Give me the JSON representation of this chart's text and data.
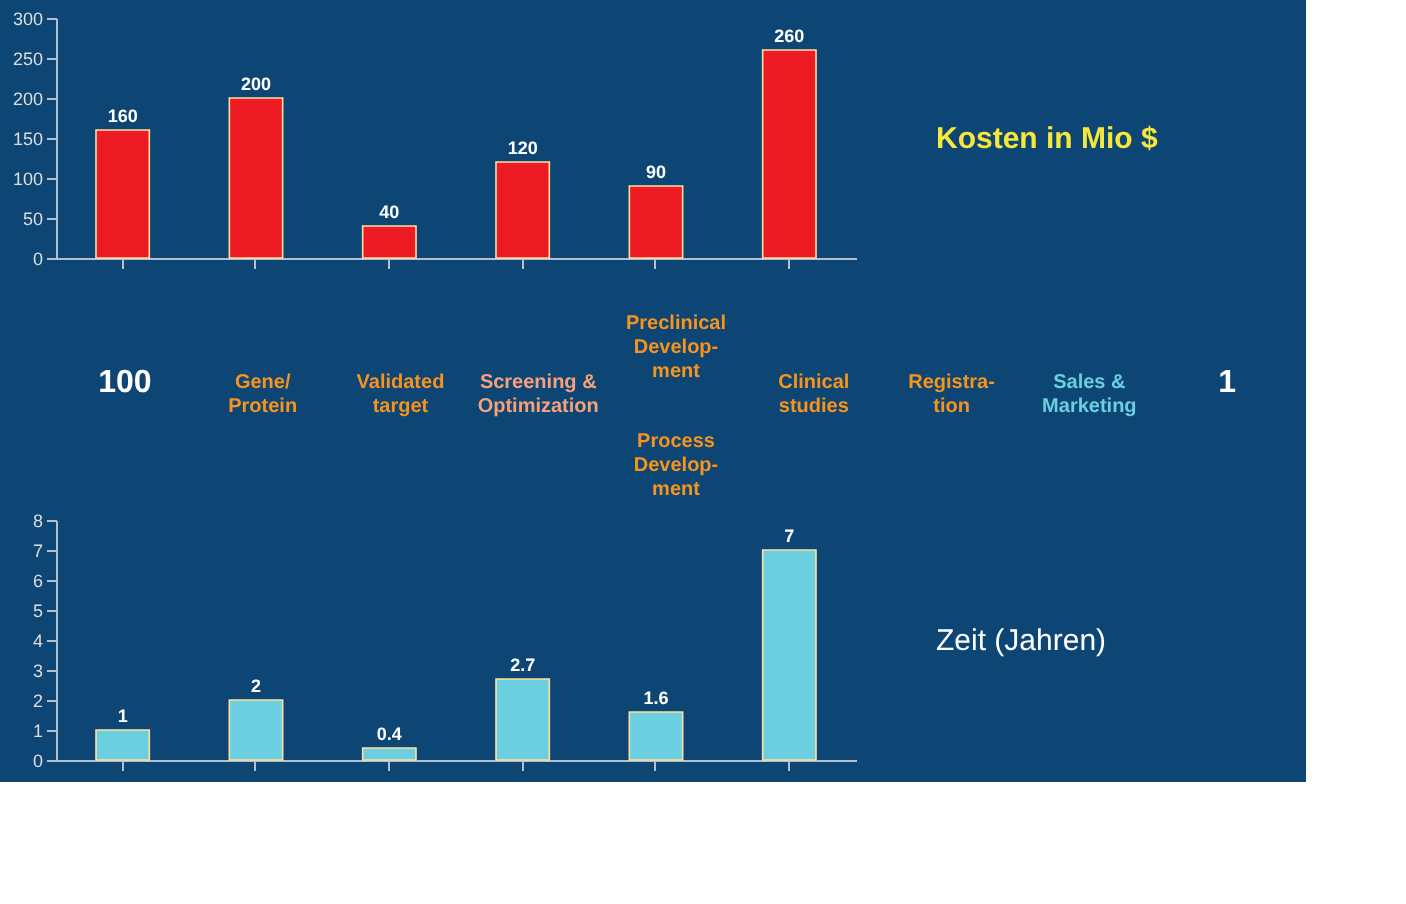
{
  "chart_data": [
    {
      "type": "bar",
      "categories": [
        null,
        null,
        null,
        null,
        null,
        null
      ],
      "values": [
        160,
        200,
        40,
        120,
        90,
        260
      ],
      "color": "#ed1c24",
      "ylim": [
        0,
        300
      ],
      "yticks": [
        0,
        50,
        100,
        150,
        200,
        250,
        300
      ],
      "data_labels": true,
      "tick_labels": "y",
      "grid": false,
      "annotations": [
        "Kosten in Mio $"
      ]
    },
    {
      "type": "other",
      "annotations": [
        "100",
        "Gene/\nProtein",
        "Validated\ntarget",
        "Screening &\nOptimization",
        "Preclinical\nDevelop-\nment",
        "Process\nDevelop-\nment",
        "Clinical\nstudies",
        "Registra-\ntion",
        "Sales &\nMarketing",
        "1"
      ]
    },
    {
      "type": "bar",
      "categories": [
        null,
        null,
        null,
        null,
        null,
        null
      ],
      "values": [
        1,
        2,
        0.4,
        2.7,
        1.6,
        7
      ],
      "color": "#6ccfe0",
      "ylim": [
        0,
        8
      ],
      "yticks": [
        0,
        1,
        2,
        3,
        4,
        5,
        6,
        7,
        8
      ],
      "data_labels": true,
      "tick_labels": "y",
      "grid": false,
      "annotations": [
        "Zeit (Jahren)"
      ]
    }
  ]
}
